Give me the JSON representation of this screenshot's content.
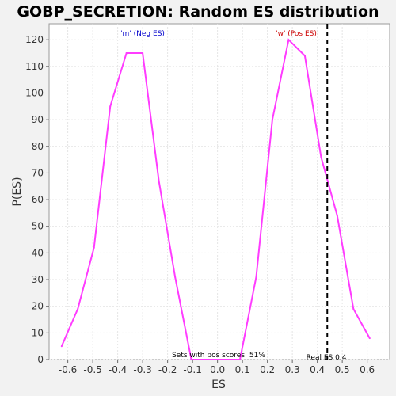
{
  "chart_data": {
    "type": "line",
    "title": "GOBP_SECRETION: Random ES distribution",
    "xlabel": "ES",
    "ylabel": "P(ES)",
    "xlim": [
      -0.675,
      0.69
    ],
    "ylim": [
      0,
      126
    ],
    "xticks": [
      -0.6,
      -0.5,
      -0.4,
      -0.3,
      -0.2,
      -0.1,
      0.0,
      0.1,
      0.2,
      0.3,
      0.4,
      0.5,
      0.6
    ],
    "xtick_labels": [
      "-0.6",
      "-0.5",
      "-0.4",
      "-0.3",
      "-0.2",
      "-0.1",
      "0.0",
      "0.1",
      "0.2",
      "0.3",
      "0.4",
      "0.5",
      "0.6"
    ],
    "yticks": [
      0,
      10,
      20,
      30,
      40,
      50,
      60,
      70,
      80,
      90,
      100,
      110,
      120
    ],
    "ytick_labels": [
      "0",
      "10",
      "20",
      "30",
      "40",
      "50",
      "60",
      "70",
      "80",
      "90",
      "100",
      "110",
      "120"
    ],
    "grid": true,
    "series": [
      {
        "color": "#ff3cff",
        "x": [
          -0.625,
          -0.56,
          -0.495,
          -0.43,
          -0.365,
          -0.3,
          -0.235,
          -0.17,
          -0.105,
          -0.04,
          0.025,
          0.09,
          0.155,
          0.22,
          0.285,
          0.35,
          0.415,
          0.48,
          0.545,
          0.61
        ],
        "y": [
          5,
          19,
          42,
          95,
          115,
          115,
          67,
          31,
          0,
          0,
          0,
          0,
          31,
          90,
          120,
          114,
          76,
          54,
          19,
          8
        ]
      }
    ],
    "real_es": 0.44,
    "real_es_color": "#000000",
    "annotations": {
      "neg_label": "'m' (Neg ES)",
      "neg_color": "#0000cc",
      "pos_label": "'w' (Pos ES)",
      "pos_color": "#cc0000",
      "sets_label": "Sets with pos scores: 51%",
      "real_es_label": "Real ES 0.4"
    }
  }
}
